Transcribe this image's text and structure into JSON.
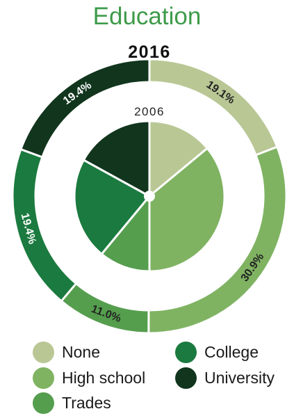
{
  "chart_data": {
    "type": "pie",
    "title": "Education",
    "outer_ring": {
      "label": "2016",
      "slices": [
        {
          "name": "None",
          "value": 19.1,
          "label": "19.1%"
        },
        {
          "name": "High school",
          "value": 30.9,
          "label": "30.9%"
        },
        {
          "name": "Trades",
          "value": 11.0,
          "label": "11.0%"
        },
        {
          "name": "College",
          "value": 19.4,
          "label": "19.4%"
        },
        {
          "name": "University",
          "value": 19.4,
          "label": "19.4%"
        }
      ]
    },
    "inner_pie": {
      "label": "2006",
      "slices": [
        {
          "name": "None",
          "value": 14.0
        },
        {
          "name": "High school",
          "value": 36.0
        },
        {
          "name": "Trades",
          "value": 11.0
        },
        {
          "name": "College",
          "value": 22.0
        },
        {
          "name": "University",
          "value": 17.0
        }
      ]
    },
    "legend": {
      "position": "bottom",
      "items": [
        {
          "name": "None",
          "color": "#b9c795"
        },
        {
          "name": "High school",
          "color": "#7fb362"
        },
        {
          "name": "Trades",
          "color": "#559e4e"
        },
        {
          "name": "College",
          "color": "#1b7a3f"
        },
        {
          "name": "University",
          "color": "#11351d"
        }
      ]
    }
  }
}
